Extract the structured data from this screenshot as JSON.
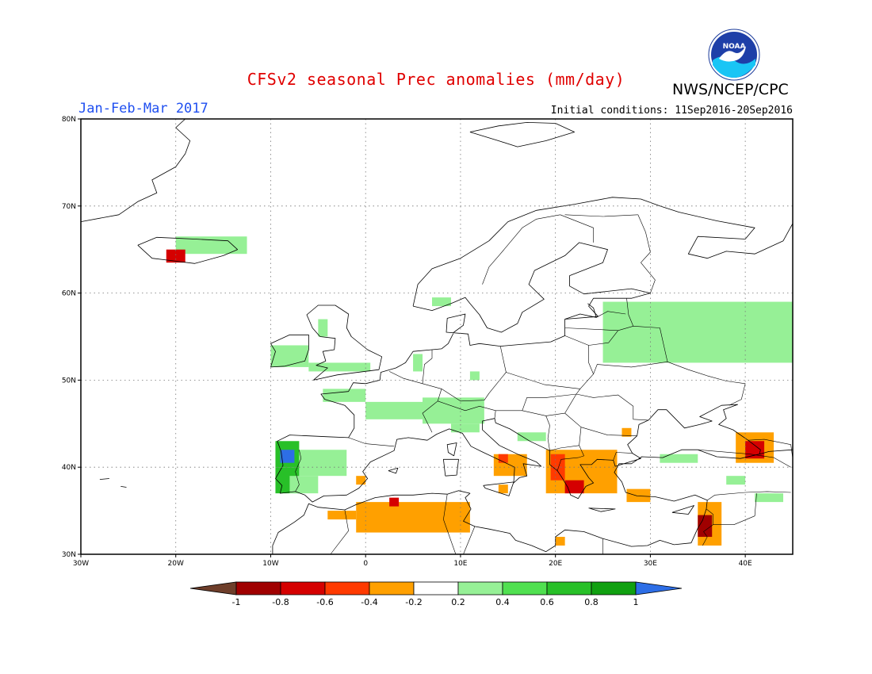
{
  "title": "CFSv2 seasonal Prec anomalies (mm/day)",
  "org": "NWS/NCEP/CPC",
  "logo_text": "NOAA",
  "period": "Jan-Feb-Mar 2017",
  "initial_conditions": "Initial conditions: 11Sep2016-20Sep2016",
  "map": {
    "lon_range": [
      -30,
      45
    ],
    "lat_range": [
      30,
      80
    ],
    "lon_ticks": [
      {
        "lon": -30,
        "label": "30W"
      },
      {
        "lon": -20,
        "label": "20W"
      },
      {
        "lon": -10,
        "label": "10W"
      },
      {
        "lon": 0,
        "label": "0"
      },
      {
        "lon": 10,
        "label": "10E"
      },
      {
        "lon": 20,
        "label": "20E"
      },
      {
        "lon": 30,
        "label": "30E"
      },
      {
        "lon": 40,
        "label": "40E"
      }
    ],
    "lat_ticks": [
      {
        "lat": 30,
        "label": "30N"
      },
      {
        "lat": 40,
        "label": "40N"
      },
      {
        "lat": 50,
        "label": "50N"
      },
      {
        "lat": 60,
        "label": "60N"
      },
      {
        "lat": 70,
        "label": "70N"
      },
      {
        "lat": 80,
        "label": "80N"
      }
    ],
    "grid": "dotted",
    "coastline_color": "#000000"
  },
  "anomalies": [
    {
      "region": "Iceland",
      "lon": [
        -20,
        -12.5
      ],
      "lat": [
        64.5,
        66.5
      ],
      "value": 0.3
    },
    {
      "region": "SW Iceland",
      "lon": [
        -21,
        -19
      ],
      "lat": [
        63.5,
        65
      ],
      "value": -0.7
    },
    {
      "region": "Ireland",
      "lon": [
        -10,
        -6
      ],
      "lat": [
        51.5,
        54
      ],
      "value": 0.3
    },
    {
      "region": "Scotland",
      "lon": [
        -5,
        -4
      ],
      "lat": [
        55,
        57
      ],
      "value": 0.3
    },
    {
      "region": "S Norway coast",
      "lon": [
        7,
        9
      ],
      "lat": [
        58.5,
        59.5
      ],
      "value": 0.3
    },
    {
      "region": "England",
      "lon": [
        -6,
        0.5
      ],
      "lat": [
        51,
        52
      ],
      "value": 0.3
    },
    {
      "region": "Belgium",
      "lon": [
        5,
        6
      ],
      "lat": [
        51,
        53
      ],
      "value": 0.3
    },
    {
      "region": "France west",
      "lon": [
        -4.5,
        0
      ],
      "lat": [
        47.5,
        49
      ],
      "value": 0.3
    },
    {
      "region": "France center",
      "lon": [
        0,
        10
      ],
      "lat": [
        45.5,
        47.5
      ],
      "value": 0.3
    },
    {
      "region": "Alps",
      "lon": [
        6,
        12.5
      ],
      "lat": [
        45,
        48
      ],
      "value": 0.3
    },
    {
      "region": "Northern Italy",
      "lon": [
        9,
        12
      ],
      "lat": [
        44,
        45
      ],
      "value": 0.3
    },
    {
      "region": "Adriatic",
      "lon": [
        16,
        19
      ],
      "lat": [
        43,
        44
      ],
      "value": 0.3
    },
    {
      "region": "Germany",
      "lon": [
        11,
        12
      ],
      "lat": [
        50,
        51
      ],
      "value": 0.3
    },
    {
      "region": "Iberia NW strong",
      "lon": [
        -9.5,
        -7
      ],
      "lat": [
        40,
        43
      ],
      "value": 0.7
    },
    {
      "region": "Iberia NW max",
      "lon": [
        -9,
        -7.5
      ],
      "lat": [
        40.5,
        42
      ],
      "value": 1.1
    },
    {
      "region": "Iberia W",
      "lon": [
        -9.5,
        -7
      ],
      "lat": [
        37,
        40
      ],
      "value": 0.7
    },
    {
      "region": "Iberia interior",
      "lon": [
        -7,
        -2
      ],
      "lat": [
        39,
        42
      ],
      "value": 0.3
    },
    {
      "region": "Iberia S",
      "lon": [
        -8,
        -5
      ],
      "lat": [
        37,
        39
      ],
      "value": 0.3
    },
    {
      "region": "Russia west",
      "lon": [
        25,
        45
      ],
      "lat": [
        52,
        59
      ],
      "value": 0.3
    },
    {
      "region": "Turkey",
      "lon": [
        31,
        35
      ],
      "lat": [
        40.5,
        41.5
      ],
      "value": 0.3
    },
    {
      "region": "Georgia",
      "lon": [
        38,
        40
      ],
      "lat": [
        38,
        39
      ],
      "value": 0.3
    },
    {
      "region": "Armenia",
      "lon": [
        41,
        44
      ],
      "lat": [
        36,
        37
      ],
      "value": 0.3
    },
    {
      "region": "Algeria",
      "lon": [
        -1,
        11
      ],
      "lat": [
        32.5,
        36
      ],
      "value": -0.3
    },
    {
      "region": "Morocco/Algeria",
      "lon": [
        -4,
        -1
      ],
      "lat": [
        34,
        35
      ],
      "value": -0.3
    },
    {
      "region": "Algeria N",
      "lon": [
        2.5,
        3.5
      ],
      "lat": [
        35.5,
        36.5
      ],
      "value": -0.7
    },
    {
      "region": "Balearic",
      "lon": [
        -1,
        0
      ],
      "lat": [
        38,
        39
      ],
      "value": -0.3
    },
    {
      "region": "Greece",
      "lon": [
        19,
        26.5
      ],
      "lat": [
        37,
        42
      ],
      "value": -0.3
    },
    {
      "region": "Greece W strong",
      "lon": [
        19.5,
        21
      ],
      "lat": [
        38.5,
        41.5
      ],
      "value": -0.5
    },
    {
      "region": "Peloponnese",
      "lon": [
        21,
        23
      ],
      "lat": [
        37,
        38.5
      ],
      "value": -0.7
    },
    {
      "region": "South Italy",
      "lon": [
        13.5,
        17
      ],
      "lat": [
        39,
        41.5
      ],
      "value": -0.3
    },
    {
      "region": "Campania",
      "lon": [
        14,
        15
      ],
      "lat": [
        40.5,
        41.5
      ],
      "value": -0.5
    },
    {
      "region": "Sicily",
      "lon": [
        14,
        15
      ],
      "lat": [
        37,
        38
      ],
      "value": -0.3
    },
    {
      "region": "Bulgaria",
      "lon": [
        27,
        28
      ],
      "lat": [
        43.5,
        44.5
      ],
      "value": -0.3
    },
    {
      "region": "SW Turkey",
      "lon": [
        27.5,
        30
      ],
      "lat": [
        36,
        37.5
      ],
      "value": -0.3
    },
    {
      "region": "Caucasus",
      "lon": [
        39,
        43
      ],
      "lat": [
        40.5,
        44
      ],
      "value": -0.3
    },
    {
      "region": "Caucasus core",
      "lon": [
        40,
        42
      ],
      "lat": [
        41,
        43
      ],
      "value": -0.7
    },
    {
      "region": "Levant",
      "lon": [
        35,
        37.5
      ],
      "lat": [
        31,
        36
      ],
      "value": -0.3
    },
    {
      "region": "Lebanon",
      "lon": [
        35,
        36.5
      ],
      "lat": [
        32,
        34.5
      ],
      "value": -0.9
    },
    {
      "region": "Libya",
      "lon": [
        20,
        21
      ],
      "lat": [
        31,
        32
      ],
      "value": -0.3
    }
  ],
  "colorbar": {
    "labels": [
      "-1",
      "-0.8",
      "-0.6",
      "-0.4",
      "-0.2",
      "0.2",
      "0.4",
      "0.6",
      "0.8",
      "1"
    ],
    "colors": [
      "#6e3e2a",
      "#a00000",
      "#d50000",
      "#ff3a00",
      "#ffa000",
      "#ffffff",
      "#96f096",
      "#50e050",
      "#28c028",
      "#10a010",
      "#2d6ee6"
    ]
  }
}
